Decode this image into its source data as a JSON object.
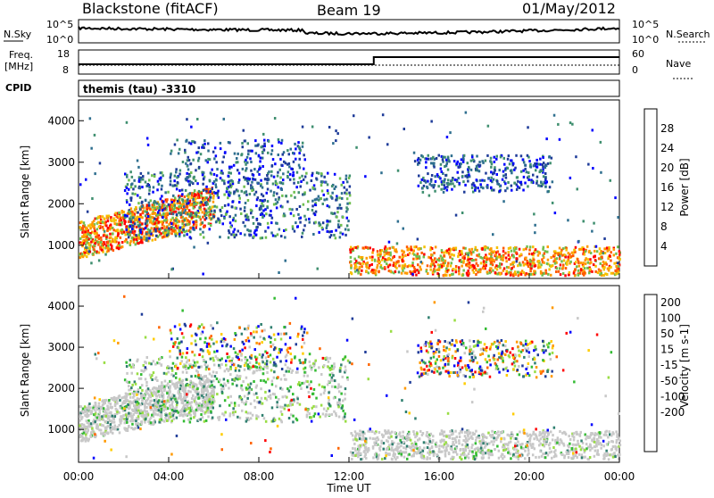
{
  "header": {
    "station": "Blackstone (fitACF)",
    "beam": "Beam 19",
    "date": "01/May/2012",
    "cpid_label": "CPID",
    "cpid_value": "themis (tau) -3310"
  },
  "noise_panel": {
    "left_label": "N.Sky",
    "right_label": "N.Search",
    "left_ticks": [
      "10^5",
      "10^0"
    ],
    "right_ticks": [
      "10^5",
      "10^0"
    ]
  },
  "freq_panel": {
    "left_label": "Freq.",
    "left_unit": "[MHz]",
    "right_label": "Nave",
    "left_ticks": [
      "18",
      "8"
    ],
    "right_ticks": [
      "60",
      "0"
    ]
  },
  "colors": {
    "power": [
      "#0000ff",
      "#1f3c99",
      "#2f6f8f",
      "#3f8f6f",
      "#6fbf4f",
      "#f5c000",
      "#ff9900",
      "#ff5a00",
      "#ff0000"
    ],
    "velocity": [
      "#ff0000",
      "#ff6600",
      "#ff9900",
      "#ffcc00",
      "#c8c8c8",
      "#99dd44",
      "#33bb33",
      "#2f7f6f",
      "#1f3c99",
      "#0000ff"
    ]
  },
  "chart_data": [
    {
      "type": "heatmap",
      "name_label": "Power [dB]",
      "ylabel": "Slant Range [km]",
      "xlabel": "Time UT",
      "x_ticks": [
        "00:00",
        "04:00",
        "08:00",
        "12:00",
        "16:00",
        "20:00",
        "00:00"
      ],
      "y_ticks": [
        "1000",
        "2000",
        "3000",
        "4000"
      ],
      "ylim": [
        200,
        4500
      ],
      "xlim_hours": [
        0,
        24
      ],
      "colorbar_ticks": [
        "4",
        "8",
        "12",
        "16",
        "20",
        "24",
        "28"
      ],
      "colorbar_range": [
        0,
        32
      ]
    },
    {
      "type": "heatmap",
      "name_label": "Velocity [m s-1]",
      "ylabel": "Slant Range [km]",
      "xlabel": "Time UT",
      "x_ticks": [
        "00:00",
        "04:00",
        "08:00",
        "12:00",
        "16:00",
        "20:00",
        "00:00"
      ],
      "y_ticks": [
        "1000",
        "2000",
        "3000",
        "4000"
      ],
      "ylim": [
        200,
        4500
      ],
      "xlim_hours": [
        0,
        24
      ],
      "colorbar_ticks": [
        "200",
        "100",
        "50",
        "15",
        "-15",
        "-50",
        "-100",
        "-200"
      ],
      "colorbar_range": [
        -250,
        250
      ]
    }
  ]
}
